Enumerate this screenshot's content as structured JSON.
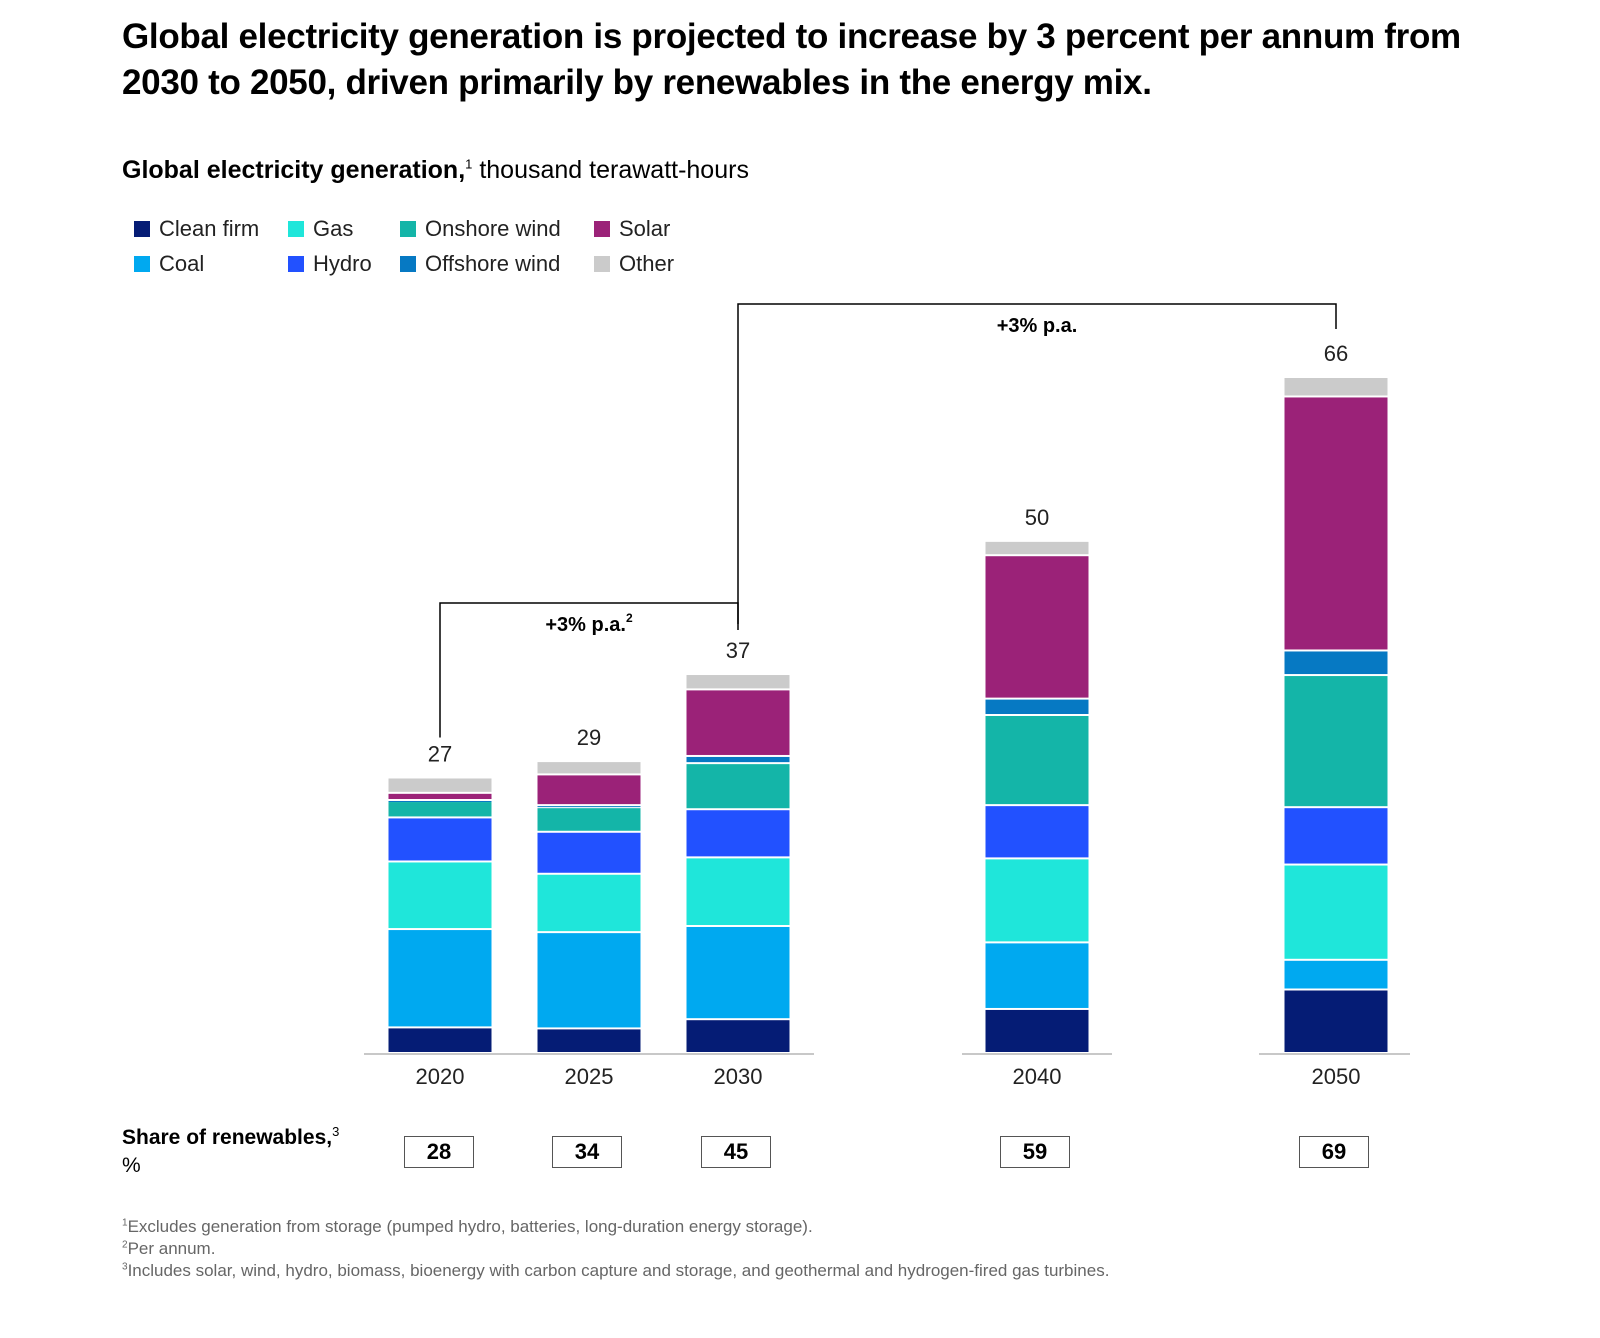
{
  "title": "Global electricity generation is projected to increase by 3 percent per annum from 2030 to 2050, driven primarily by renewables in the energy mix.",
  "subtitle": {
    "bold": "Global electricity generation,",
    "sup": "1",
    "rest": " thousand terawatt-hours"
  },
  "share": {
    "label_bold": "Share of renewables,",
    "label_sup": "3",
    "unit": "%",
    "values": [
      "28",
      "34",
      "45",
      "59",
      "69"
    ]
  },
  "footnotes": [
    {
      "sup": "1",
      "text": "Excludes generation from storage (pumped hydro, batteries, long-duration energy storage)."
    },
    {
      "sup": "2",
      "text": "Per annum."
    },
    {
      "sup": "3",
      "text": "Includes solar, wind, hydro, biomass, bioenergy with carbon capture and storage, and geothermal and hydrogen-fired gas turbines."
    }
  ],
  "chart_data": {
    "type": "bar",
    "stacked": true,
    "title": "Global electricity generation",
    "ylabel": "thousand terawatt-hours",
    "xlabel": "",
    "ylim": [
      0,
      66
    ],
    "grid": false,
    "legend_position": "top-left",
    "categories": [
      "2020",
      "2025",
      "2030",
      "2040",
      "2050"
    ],
    "totals": [
      "27",
      "29",
      "37",
      "50",
      "66"
    ],
    "series": [
      {
        "name": "Clean firm",
        "color": "#051C75",
        "values": [
          2.5,
          2.4,
          3.3,
          4.3,
          6.2
        ]
      },
      {
        "name": "Coal",
        "color": "#00A9F0",
        "values": [
          9.6,
          9.4,
          9.1,
          6.5,
          2.9
        ]
      },
      {
        "name": "Gas",
        "color": "#1FE6DA",
        "values": [
          6.6,
          5.7,
          6.7,
          8.2,
          9.3
        ]
      },
      {
        "name": "Hydro",
        "color": "#2251FF",
        "values": [
          4.3,
          4.1,
          4.7,
          5.2,
          5.6
        ]
      },
      {
        "name": "Onshore wind",
        "color": "#14B5A8",
        "values": [
          1.6,
          2.4,
          4.5,
          8.8,
          12.9
        ]
      },
      {
        "name": "Offshore wind",
        "color": "#0679C3",
        "values": [
          0.1,
          0.2,
          0.7,
          1.6,
          2.4
        ]
      },
      {
        "name": "Solar",
        "color": "#9B2278",
        "values": [
          0.7,
          3.0,
          6.5,
          14.0,
          24.8
        ]
      },
      {
        "name": "Other",
        "color": "#CBCBCB",
        "values": [
          1.5,
          1.3,
          1.5,
          1.4,
          1.9
        ]
      }
    ],
    "legend_order": [
      "Clean firm",
      "Gas",
      "Onshore wind",
      "Solar",
      "Coal",
      "Hydro",
      "Offshore wind",
      "Other"
    ],
    "annotations": [
      {
        "text": "+3% p.a.",
        "sup": "2",
        "from": "2020",
        "to": "2030"
      },
      {
        "text": "+3% p.a.",
        "sup": "",
        "from": "2030",
        "to": "2050"
      }
    ]
  }
}
